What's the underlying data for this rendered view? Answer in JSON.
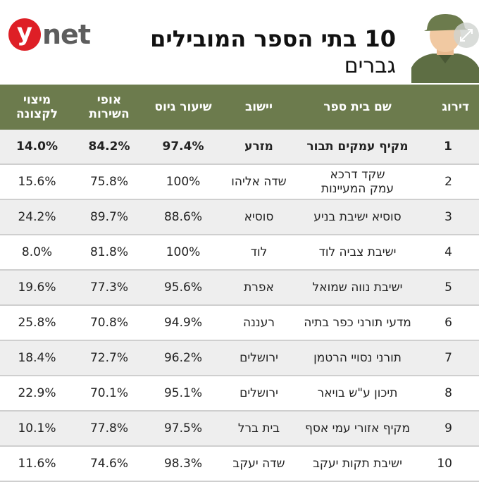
{
  "header": {
    "logo": {
      "letter": "y",
      "word": "net"
    },
    "title": "10 בתי הספר המובילים",
    "subtitle": "גברים"
  },
  "table": {
    "columns": [
      "דירוג",
      "שם בית ספר",
      "יישוב",
      "שיעור גיוס",
      [
        "אופי",
        "השירות"
      ],
      [
        "מיצוי",
        "לקצונה"
      ]
    ],
    "rows": [
      [
        "1",
        "מקיף עמקים תבור",
        "מזרע",
        "97.4%",
        "84.2%",
        "14.0%"
      ],
      [
        "2",
        [
          "שקד דרכא",
          "עמק המעיינות"
        ],
        "שדה אליהו",
        "100%",
        "75.8%",
        "15.6%"
      ],
      [
        "3",
        "סוסיא ישיבת בניע",
        "סוסיא",
        "88.6%",
        "89.7%",
        "24.2%"
      ],
      [
        "4",
        "ישיבת צביה לוד",
        "לוד",
        "100%",
        "81.8%",
        "8.0%"
      ],
      [
        "5",
        "ישיבת נווה שמואל",
        "אפרת",
        "95.6%",
        "77.3%",
        "19.6%"
      ],
      [
        "6",
        "מדעי תורני כפר בתיה",
        "רעננה",
        "94.9%",
        "70.8%",
        "25.8%"
      ],
      [
        "7",
        "תורני נסויי הרטמן",
        "ירושלים",
        "96.2%",
        "72.7%",
        "18.4%"
      ],
      [
        "8",
        "תיכון ע\"ש בויאר",
        "ירושלים",
        "95.1%",
        "70.1%",
        "22.9%"
      ],
      [
        "9",
        "מקיף אזורי עמי אסף",
        "בית ברל",
        "97.5%",
        "77.8%",
        "10.1%"
      ],
      [
        "10",
        "ישיבת תקות יעקב",
        "שדה יעקב",
        "98.3%",
        "74.6%",
        "11.6%"
      ]
    ]
  }
}
